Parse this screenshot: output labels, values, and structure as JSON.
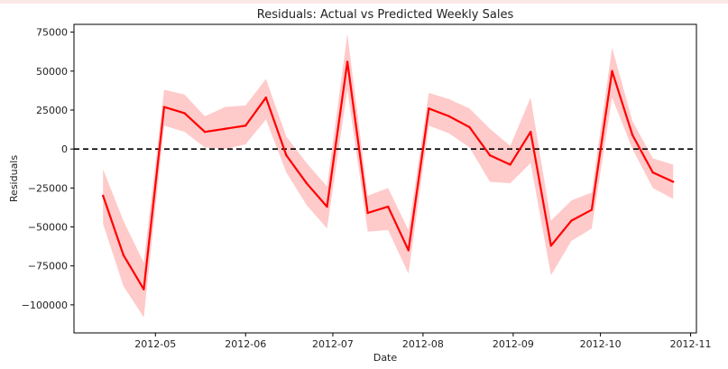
{
  "chart_data": {
    "type": "line",
    "title": "Residuals: Actual vs Predicted Weekly Sales",
    "xlabel": "Date",
    "ylabel": "Residuals",
    "ylim": [
      -118000,
      80000
    ],
    "xlim": [
      "2012-04-03",
      "2012-11-03"
    ],
    "yticks": [
      75000,
      50000,
      25000,
      0,
      -25000,
      -50000,
      -75000,
      -100000
    ],
    "ytick_labels": [
      "75000",
      "50000",
      "25000",
      "0",
      "−25000",
      "−50000",
      "−75000",
      "−100000"
    ],
    "xticks": [
      "2012-05-01",
      "2012-06-01",
      "2012-07-01",
      "2012-08-01",
      "2012-09-01",
      "2012-10-01",
      "2012-11-01"
    ],
    "xtick_labels": [
      "2012-05",
      "2012-06",
      "2012-07",
      "2012-08",
      "2012-09",
      "2012-10",
      "2012-11"
    ],
    "reference_line": {
      "y": 0,
      "style": "dashed",
      "color": "#000000"
    },
    "line_color": "#ff0000",
    "band_color": "#ffb3b3",
    "grid": false,
    "series": [
      {
        "x": [
          "2012-04-13",
          "2012-04-20",
          "2012-04-27",
          "2012-05-04",
          "2012-05-11",
          "2012-05-18",
          "2012-05-25",
          "2012-06-01",
          "2012-06-08",
          "2012-06-15",
          "2012-06-22",
          "2012-06-29",
          "2012-07-06",
          "2012-07-13",
          "2012-07-20",
          "2012-07-27",
          "2012-08-03",
          "2012-08-10",
          "2012-08-17",
          "2012-08-24",
          "2012-08-31",
          "2012-09-07",
          "2012-09-14",
          "2012-09-21",
          "2012-09-28",
          "2012-10-05",
          "2012-10-12",
          "2012-10-19",
          "2012-10-26"
        ],
        "y": [
          -30000,
          -68000,
          -90000,
          27000,
          23000,
          11000,
          13000,
          15000,
          33000,
          -4000,
          -22000,
          -37000,
          56000,
          -41000,
          -37000,
          -65000,
          26000,
          21000,
          14000,
          -4000,
          -10000,
          11000,
          -62000,
          -46000,
          -39000,
          50000,
          9000,
          -15000,
          -21000
        ],
        "lower": [
          -48000,
          -88000,
          -108000,
          15000,
          11000,
          1000,
          0,
          3000,
          19000,
          -15000,
          -36000,
          -51000,
          38000,
          -53000,
          -52000,
          -80000,
          15000,
          10000,
          1000,
          -21000,
          -22000,
          -9000,
          -81000,
          -59000,
          -51000,
          33000,
          0,
          -25000,
          -32000
        ],
        "upper": [
          -13000,
          -46000,
          -73000,
          38000,
          35000,
          21000,
          27000,
          28000,
          45000,
          8000,
          -9000,
          -24000,
          74000,
          -30000,
          -25000,
          -52000,
          36000,
          32000,
          26000,
          13000,
          2000,
          33000,
          -46000,
          -33000,
          -28000,
          65000,
          18000,
          -6000,
          -10000
        ]
      }
    ]
  }
}
